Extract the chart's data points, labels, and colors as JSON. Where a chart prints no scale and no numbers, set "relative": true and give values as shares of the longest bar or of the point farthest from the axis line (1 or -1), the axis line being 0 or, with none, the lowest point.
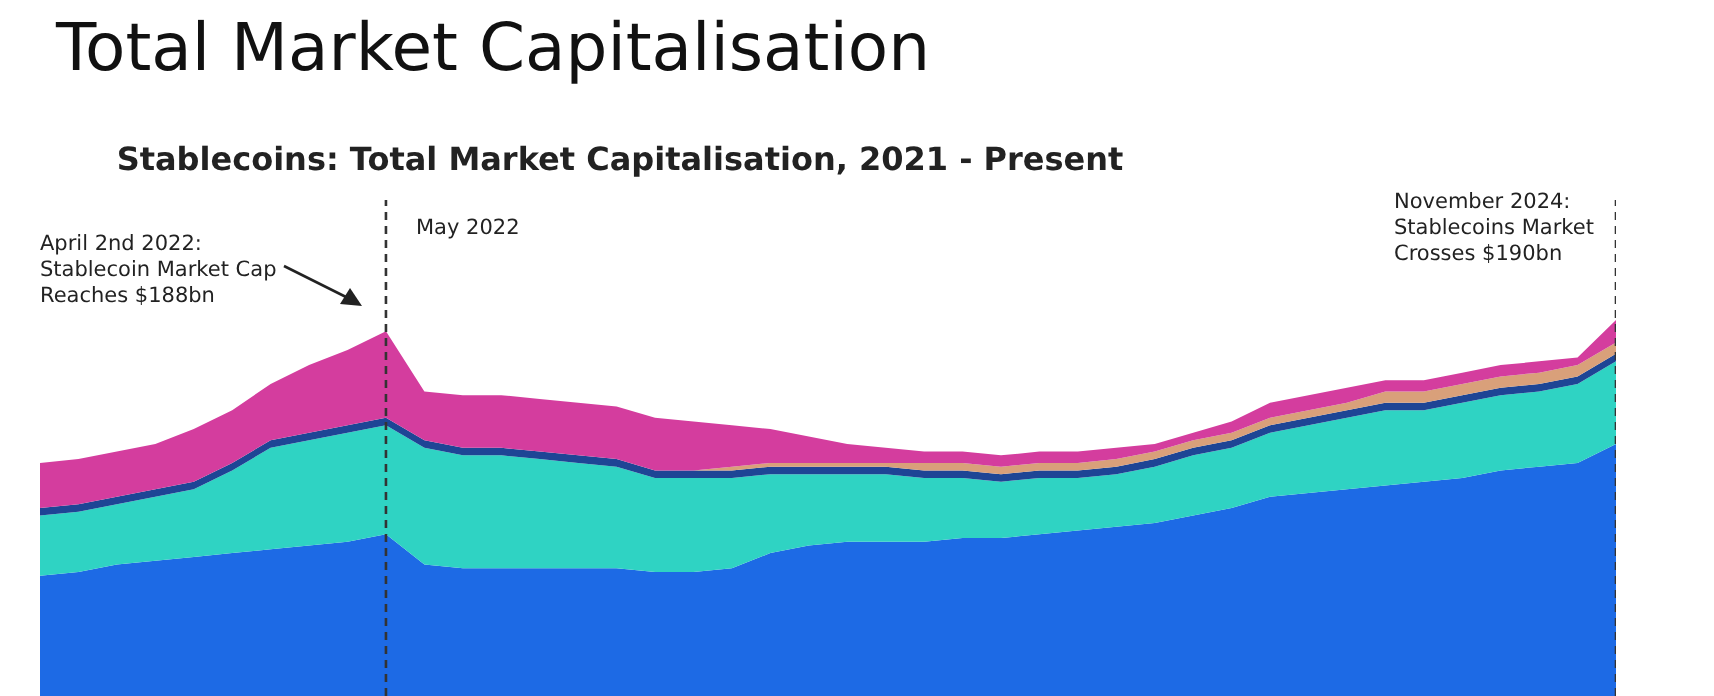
{
  "chart_data": {
    "type": "area",
    "title": "Total Market Capitalisation",
    "subtitle": "Stablecoins: Total Market Capitalisation, 2021 - Present",
    "relative": true,
    "stacked": true,
    "grid": false,
    "legend": false,
    "tick_labels": false,
    "categories": [
      null,
      null,
      null,
      null,
      null,
      null,
      null,
      null,
      null,
      null,
      null,
      null,
      null,
      null,
      null,
      null,
      null,
      null,
      null,
      null,
      null,
      null,
      null,
      null,
      null,
      null,
      null,
      null,
      null,
      null,
      null,
      null,
      null,
      null,
      null,
      null,
      null,
      null,
      null,
      null,
      null,
      null
    ],
    "series": [
      {
        "color": "#1d6ae5",
        "values": [
          0.32,
          0.33,
          0.35,
          0.36,
          0.37,
          0.38,
          0.39,
          0.4,
          0.41,
          0.43,
          0.35,
          0.34,
          0.34,
          0.34,
          0.34,
          0.34,
          0.33,
          0.33,
          0.34,
          0.38,
          0.4,
          0.41,
          0.41,
          0.41,
          0.42,
          0.42,
          0.43,
          0.44,
          0.45,
          0.46,
          0.48,
          0.5,
          0.53,
          0.54,
          0.55,
          0.56,
          0.57,
          0.58,
          0.6,
          0.61,
          0.62,
          0.67
        ]
      },
      {
        "color": "#2fd3c3",
        "values": [
          0.16,
          0.16,
          0.16,
          0.17,
          0.18,
          0.22,
          0.27,
          0.28,
          0.29,
          0.29,
          0.31,
          0.3,
          0.3,
          0.29,
          0.28,
          0.27,
          0.25,
          0.25,
          0.24,
          0.21,
          0.19,
          0.18,
          0.18,
          0.17,
          0.16,
          0.15,
          0.15,
          0.14,
          0.14,
          0.15,
          0.16,
          0.16,
          0.17,
          0.18,
          0.19,
          0.2,
          0.19,
          0.2,
          0.2,
          0.2,
          0.21,
          0.22
        ]
      },
      {
        "color": "#1e4595",
        "values": [
          0.02,
          0.02,
          0.02,
          0.02,
          0.02,
          0.02,
          0.02,
          0.02,
          0.02,
          0.02,
          0.02,
          0.02,
          0.02,
          0.02,
          0.02,
          0.02,
          0.02,
          0.02,
          0.02,
          0.02,
          0.02,
          0.02,
          0.02,
          0.02,
          0.02,
          0.02,
          0.02,
          0.02,
          0.02,
          0.02,
          0.02,
          0.02,
          0.02,
          0.02,
          0.02,
          0.02,
          0.02,
          0.02,
          0.02,
          0.02,
          0.02,
          0.02
        ]
      },
      {
        "color": "#d9a07a",
        "values": [
          0,
          0,
          0,
          0,
          0,
          0,
          0,
          0,
          0,
          0,
          0,
          0,
          0,
          0,
          0,
          0,
          0,
          0,
          0.01,
          0.01,
          0.01,
          0.01,
          0.01,
          0.02,
          0.02,
          0.02,
          0.02,
          0.02,
          0.02,
          0.02,
          0.02,
          0.02,
          0.02,
          0.02,
          0.02,
          0.03,
          0.03,
          0.03,
          0.03,
          0.03,
          0.03,
          0.03
        ]
      },
      {
        "color": "#d43d9e",
        "values": [
          0.12,
          0.12,
          0.12,
          0.12,
          0.14,
          0.14,
          0.15,
          0.18,
          0.2,
          0.23,
          0.13,
          0.14,
          0.14,
          0.14,
          0.14,
          0.14,
          0.14,
          0.13,
          0.11,
          0.09,
          0.07,
          0.05,
          0.04,
          0.03,
          0.03,
          0.03,
          0.03,
          0.03,
          0.03,
          0.02,
          0.02,
          0.03,
          0.04,
          0.04,
          0.04,
          0.03,
          0.03,
          0.03,
          0.03,
          0.03,
          0.02,
          0.06
        ]
      }
    ],
    "annotations": [
      "April 2nd 2022:\nStablecoin Market Cap\nReaches $188bn",
      "May 2022",
      "November 2024:\nStablecoins Market\nCrosses $190bn"
    ]
  }
}
